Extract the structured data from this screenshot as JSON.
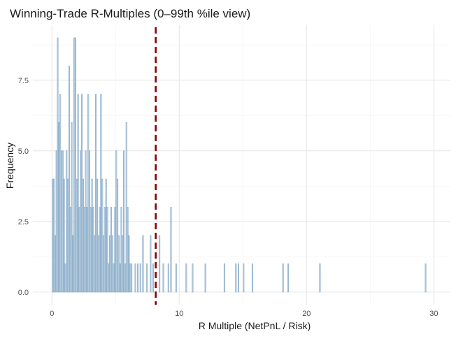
{
  "chart_data": {
    "type": "bar",
    "title": "Winning-Trade R-Multiples (0–99th %ile view)",
    "xlabel": "R Multiple (NetPnL / Risk)",
    "ylabel": "Frequency",
    "xlim": [
      -1.5,
      31.3
    ],
    "ylim": [
      -0.45,
      9.45
    ],
    "x_ticks": [
      0,
      10,
      20,
      30
    ],
    "y_ticks": [
      0,
      2.5,
      5,
      7.5
    ],
    "x_tick_labels": [
      "0",
      "10",
      "20",
      "30"
    ],
    "y_tick_labels": [
      "0.0",
      "2.5",
      "5.0",
      "7.5"
    ],
    "grid": true,
    "legend": "none",
    "bar_color": "#8fb0cc",
    "bar_width": 0.065,
    "reference_line": {
      "x": 8.15,
      "color": "#8b0000",
      "style": "dashed"
    },
    "bins": [
      {
        "x": 0.05,
        "y": 4
      },
      {
        "x": 0.15,
        "y": 4
      },
      {
        "x": 0.25,
        "y": 2
      },
      {
        "x": 0.35,
        "y": 5
      },
      {
        "x": 0.45,
        "y": 9
      },
      {
        "x": 0.55,
        "y": 6
      },
      {
        "x": 0.65,
        "y": 7
      },
      {
        "x": 0.75,
        "y": 5
      },
      {
        "x": 0.85,
        "y": 5
      },
      {
        "x": 0.95,
        "y": 4
      },
      {
        "x": 1.05,
        "y": 1
      },
      {
        "x": 1.15,
        "y": 5
      },
      {
        "x": 1.25,
        "y": 4
      },
      {
        "x": 1.35,
        "y": 8
      },
      {
        "x": 1.45,
        "y": 3
      },
      {
        "x": 1.55,
        "y": 6
      },
      {
        "x": 1.65,
        "y": 2
      },
      {
        "x": 1.75,
        "y": 9
      },
      {
        "x": 1.85,
        "y": 9
      },
      {
        "x": 1.95,
        "y": 4
      },
      {
        "x": 2.05,
        "y": 7
      },
      {
        "x": 2.15,
        "y": 3
      },
      {
        "x": 2.25,
        "y": 5
      },
      {
        "x": 2.35,
        "y": 7
      },
      {
        "x": 2.45,
        "y": 4
      },
      {
        "x": 2.55,
        "y": 3
      },
      {
        "x": 2.65,
        "y": 5
      },
      {
        "x": 2.75,
        "y": 3
      },
      {
        "x": 2.85,
        "y": 7
      },
      {
        "x": 2.95,
        "y": 5
      },
      {
        "x": 3.05,
        "y": 3
      },
      {
        "x": 3.15,
        "y": 4
      },
      {
        "x": 3.25,
        "y": 3
      },
      {
        "x": 3.35,
        "y": 2
      },
      {
        "x": 3.45,
        "y": 7
      },
      {
        "x": 3.55,
        "y": 4
      },
      {
        "x": 3.65,
        "y": 2
      },
      {
        "x": 3.75,
        "y": 3
      },
      {
        "x": 3.85,
        "y": 7
      },
      {
        "x": 3.95,
        "y": 4
      },
      {
        "x": 4.05,
        "y": 2
      },
      {
        "x": 4.15,
        "y": 3
      },
      {
        "x": 4.25,
        "y": 4
      },
      {
        "x": 4.35,
        "y": 3
      },
      {
        "x": 4.45,
        "y": 1
      },
      {
        "x": 4.55,
        "y": 2
      },
      {
        "x": 4.65,
        "y": 3
      },
      {
        "x": 4.75,
        "y": 2
      },
      {
        "x": 4.85,
        "y": 1
      },
      {
        "x": 4.95,
        "y": 3
      },
      {
        "x": 5.05,
        "y": 5
      },
      {
        "x": 5.15,
        "y": 4
      },
      {
        "x": 5.25,
        "y": 2
      },
      {
        "x": 5.35,
        "y": 1
      },
      {
        "x": 5.45,
        "y": 3
      },
      {
        "x": 5.55,
        "y": 2
      },
      {
        "x": 5.65,
        "y": 5
      },
      {
        "x": 5.75,
        "y": 1
      },
      {
        "x": 5.85,
        "y": 6
      },
      {
        "x": 5.95,
        "y": 3
      },
      {
        "x": 6.05,
        "y": 2
      },
      {
        "x": 6.15,
        "y": 1
      },
      {
        "x": 6.25,
        "y": 1
      },
      {
        "x": 6.55,
        "y": 1
      },
      {
        "x": 6.75,
        "y": 1
      },
      {
        "x": 6.95,
        "y": 1
      },
      {
        "x": 7.15,
        "y": 2
      },
      {
        "x": 7.45,
        "y": 1
      },
      {
        "x": 7.75,
        "y": 2
      },
      {
        "x": 7.95,
        "y": 1
      },
      {
        "x": 8.45,
        "y": 2
      },
      {
        "x": 8.75,
        "y": 1
      },
      {
        "x": 9.15,
        "y": 1
      },
      {
        "x": 9.35,
        "y": 3
      },
      {
        "x": 9.75,
        "y": 1
      },
      {
        "x": 10.55,
        "y": 1
      },
      {
        "x": 11.05,
        "y": 1
      },
      {
        "x": 12.05,
        "y": 1
      },
      {
        "x": 13.55,
        "y": 1
      },
      {
        "x": 14.45,
        "y": 1
      },
      {
        "x": 14.65,
        "y": 1
      },
      {
        "x": 15.05,
        "y": 1
      },
      {
        "x": 15.75,
        "y": 1
      },
      {
        "x": 18.15,
        "y": 1
      },
      {
        "x": 18.55,
        "y": 1
      },
      {
        "x": 21.05,
        "y": 1
      },
      {
        "x": 29.35,
        "y": 1
      }
    ]
  }
}
